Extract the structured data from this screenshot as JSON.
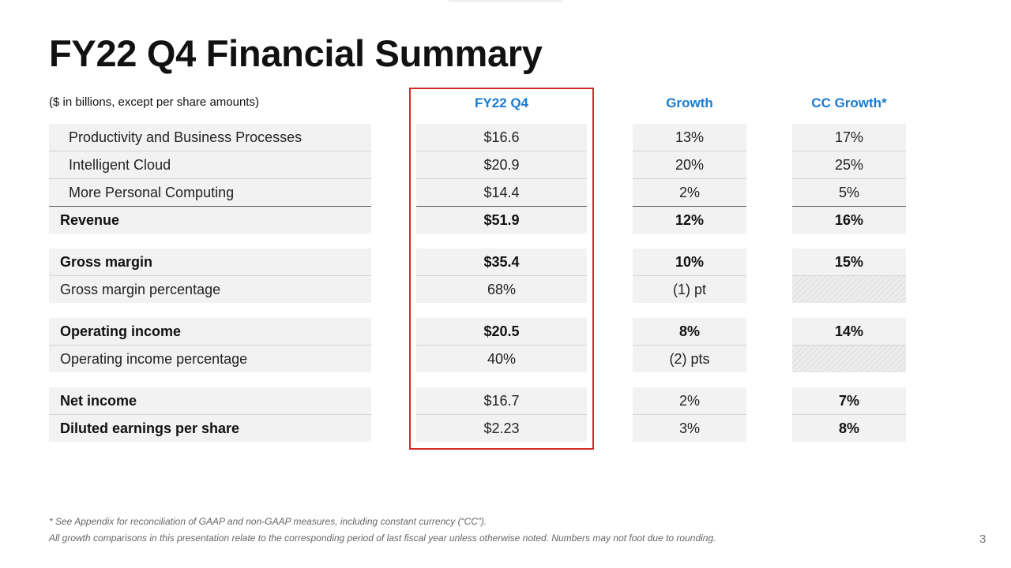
{
  "slide": {
    "title": "FY22 Q4 Financial Summary",
    "subtitle": "($ in billions, except per share amounts)",
    "page_number": "3"
  },
  "columns": {
    "value": "FY22 Q4",
    "growth": "Growth",
    "cc_growth": "CC Growth*"
  },
  "rows": [
    {
      "label": "Productivity and Business Processes",
      "value": "$16.6",
      "growth": "13%",
      "cc_growth": "17%"
    },
    {
      "label": "Intelligent Cloud",
      "value": "$20.9",
      "growth": "20%",
      "cc_growth": "25%"
    },
    {
      "label": "More Personal Computing",
      "value": "$14.4",
      "growth": "2%",
      "cc_growth": "5%"
    },
    {
      "label": "Revenue",
      "value": "$51.9",
      "growth": "12%",
      "cc_growth": "16%"
    },
    {
      "label": "Gross margin",
      "value": "$35.4",
      "growth": "10%",
      "cc_growth": "15%"
    },
    {
      "label": "Gross margin percentage",
      "value": "68%",
      "growth": "(1) pt",
      "cc_growth": ""
    },
    {
      "label": "Operating income",
      "value": "$20.5",
      "growth": "8%",
      "cc_growth": "14%"
    },
    {
      "label": "Operating income percentage",
      "value": "40%",
      "growth": "(2) pts",
      "cc_growth": ""
    },
    {
      "label": "Net income",
      "value": "$16.7",
      "growth": "2%",
      "cc_growth": "7%"
    },
    {
      "label": "Diluted earnings per share",
      "value": "$2.23",
      "growth": "3%",
      "cc_growth": "8%"
    }
  ],
  "footnotes": [
    "* See Appendix for reconciliation of GAAP and non-GAAP measures, including constant currency (“CC”).",
    "All growth comparisons in this presentation relate to the corresponding period of last fiscal year unless otherwise noted. Numbers may not foot due to rounding."
  ]
}
